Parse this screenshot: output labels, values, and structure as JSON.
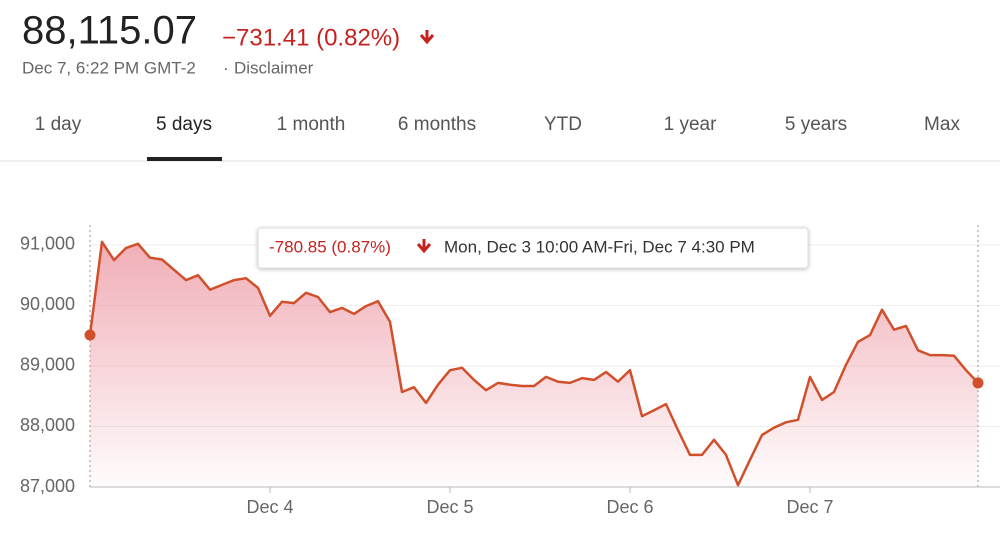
{
  "header": {
    "price": "88,115.07",
    "change": "−731.41 (0.82%)",
    "timestamp": "Dec 7, 6:22 PM GMT-2",
    "separator": "·",
    "disclaimer": "Disclaimer"
  },
  "tabs": [
    "1 day",
    "5 days",
    "1 month",
    "6 months",
    "YTD",
    "1 year",
    "5 years",
    "Max"
  ],
  "active_tab": 1,
  "chart_data": {
    "type": "line",
    "tooltip": {
      "change": "-780.85 (0.87%)",
      "range": "Mon, Dec 3 10:00 AM-Fri, Dec 7 4:30 PM"
    },
    "categories": [
      null,
      null,
      null,
      null,
      null,
      null,
      null,
      null,
      null,
      null,
      null,
      null,
      null,
      null,
      null,
      "Dec 4",
      null,
      null,
      null,
      null,
      null,
      null,
      null,
      null,
      null,
      null,
      null,
      null,
      null,
      null,
      "Dec 5",
      null,
      null,
      null,
      null,
      null,
      null,
      null,
      null,
      null,
      null,
      null,
      null,
      null,
      null,
      "Dec 6",
      null,
      null,
      null,
      null,
      null,
      null,
      null,
      null,
      null,
      null,
      null,
      null,
      null,
      null,
      "Dec 7",
      null,
      null,
      null,
      null,
      null,
      null,
      null,
      null,
      null,
      null,
      null,
      null,
      null,
      null
    ],
    "values": [
      89512,
      91050,
      90750,
      90950,
      91020,
      90790,
      90760,
      90590,
      90420,
      90500,
      90260,
      90340,
      90420,
      90450,
      90290,
      89830,
      90060,
      90040,
      90210,
      90140,
      89890,
      89960,
      89860,
      89990,
      90070,
      89730,
      88570,
      88650,
      88390,
      88690,
      88930,
      88970,
      88770,
      88600,
      88720,
      88690,
      88670,
      88670,
      88820,
      88740,
      88720,
      88800,
      88770,
      88900,
      88740,
      88930,
      88170,
      88270,
      88370,
      87940,
      87530,
      87530,
      87780,
      87530,
      87030,
      87450,
      87860,
      87980,
      88070,
      88110,
      88820,
      88440,
      88570,
      89020,
      89400,
      89510,
      89930,
      89600,
      89660,
      89260,
      89180,
      89180,
      89170,
      88930,
      88720
    ],
    "color": "#d0502c",
    "ylim": [
      87000,
      91330
    ],
    "yticks": [
      {
        "value": 87000,
        "label": "87,000"
      },
      {
        "value": 88000,
        "label": "88,000"
      },
      {
        "value": 89000,
        "label": "89,000"
      },
      {
        "value": 90000,
        "label": "90,000"
      },
      {
        "value": 91000,
        "label": "91,000"
      }
    ],
    "grid": true
  }
}
